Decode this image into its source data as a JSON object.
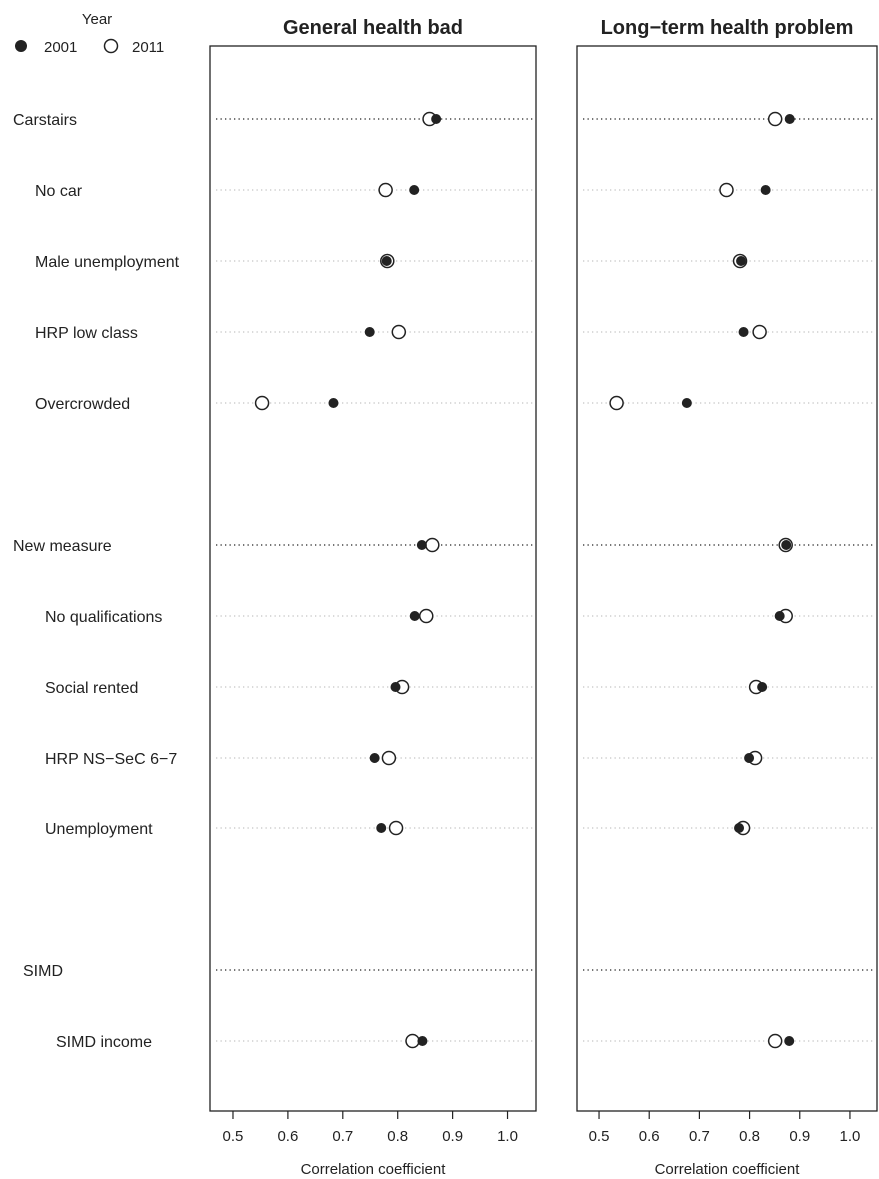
{
  "legend": {
    "title": "Year",
    "items": [
      "2001",
      "2011"
    ]
  },
  "chart_data": [
    {
      "type": "dot",
      "title": "General health bad",
      "xlabel": "Correlation coefficient",
      "xlim": [
        0.48,
        1.03
      ],
      "ticks": [
        "0.5",
        "0.6",
        "0.7",
        "0.8",
        "0.9",
        "1.0"
      ],
      "rows": [
        {
          "label": "Carstairs",
          "group": true,
          "v2001": 0.87,
          "v2011": 0.858
        },
        {
          "label": "No car",
          "group": false,
          "v2001": 0.83,
          "v2011": 0.778
        },
        {
          "label": "Male unemployment",
          "group": false,
          "v2001": 0.78,
          "v2011": 0.781
        },
        {
          "label": "HRP low class",
          "group": false,
          "v2001": 0.749,
          "v2011": 0.802
        },
        {
          "label": "Overcrowded",
          "group": false,
          "v2001": 0.683,
          "v2011": 0.553
        },
        {
          "label": "New measure",
          "group": true,
          "v2001": 0.844,
          "v2011": 0.863
        },
        {
          "label": "No qualifications",
          "group": false,
          "v2001": 0.831,
          "v2011": 0.852
        },
        {
          "label": "Social rented",
          "group": false,
          "v2001": 0.796,
          "v2011": 0.808
        },
        {
          "label": "HRP NS−SeC 6−7",
          "group": false,
          "v2001": 0.758,
          "v2011": 0.784
        },
        {
          "label": "Unemployment",
          "group": false,
          "v2001": 0.77,
          "v2011": 0.797
        },
        {
          "label": "SIMD",
          "group": true,
          "v2001": null,
          "v2011": null
        },
        {
          "label": "SIMD income",
          "group": false,
          "v2001": 0.845,
          "v2011": 0.827
        }
      ]
    },
    {
      "type": "dot",
      "title": "Long−term health problem",
      "xlabel": "Correlation coefficient",
      "xlim": [
        0.48,
        1.03
      ],
      "ticks": [
        "0.5",
        "0.6",
        "0.7",
        "0.8",
        "0.9",
        "1.0"
      ],
      "rows": [
        {
          "label": "Carstairs",
          "group": true,
          "v2001": 0.88,
          "v2011": 0.851
        },
        {
          "label": "No car",
          "group": false,
          "v2001": 0.832,
          "v2011": 0.754
        },
        {
          "label": "Male unemployment",
          "group": false,
          "v2001": 0.783,
          "v2011": 0.781
        },
        {
          "label": "HRP low class",
          "group": false,
          "v2001": 0.788,
          "v2011": 0.82
        },
        {
          "label": "Overcrowded",
          "group": false,
          "v2001": 0.675,
          "v2011": 0.535
        },
        {
          "label": "New measure",
          "group": true,
          "v2001": 0.873,
          "v2011": 0.872
        },
        {
          "label": "No qualifications",
          "group": false,
          "v2001": 0.86,
          "v2011": 0.872
        },
        {
          "label": "Social rented",
          "group": false,
          "v2001": 0.825,
          "v2011": 0.813
        },
        {
          "label": "HRP NS−SeC 6−7",
          "group": false,
          "v2001": 0.799,
          "v2011": 0.811
        },
        {
          "label": "Unemployment",
          "group": false,
          "v2001": 0.779,
          "v2011": 0.787
        },
        {
          "label": "SIMD",
          "group": true,
          "v2001": null,
          "v2011": null
        },
        {
          "label": "SIMD income",
          "group": false,
          "v2001": 0.879,
          "v2011": 0.851
        }
      ]
    }
  ]
}
